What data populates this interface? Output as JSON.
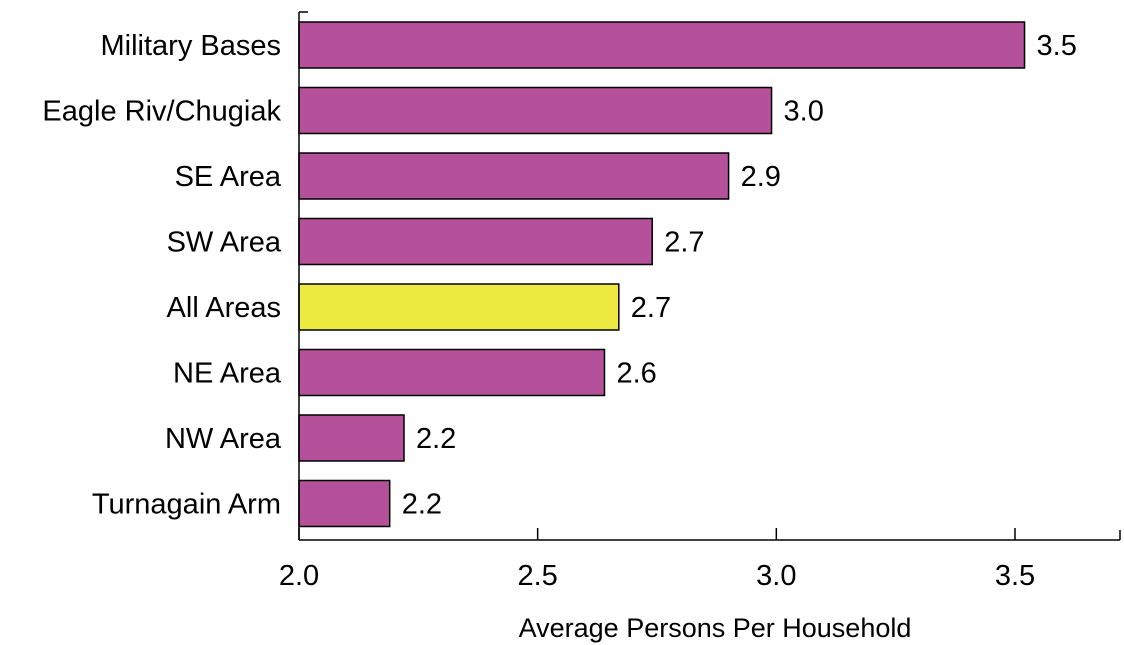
{
  "chart_data": {
    "type": "bar",
    "orientation": "horizontal",
    "categories": [
      "Military Bases",
      "Eagle Riv/Chugiak",
      "SE Area",
      "SW Area",
      "All Areas",
      "NE Area",
      "NW Area",
      "Turnagain Arm"
    ],
    "values": [
      3.52,
      2.99,
      2.9,
      2.74,
      2.67,
      2.64,
      2.22,
      2.19
    ],
    "value_labels": [
      "3.5",
      "3.0",
      "2.9",
      "2.7",
      "2.7",
      "2.6",
      "2.2",
      "2.2"
    ],
    "highlight_category": "All Areas",
    "colors": {
      "default": "#b5519b",
      "highlight": "#ecea40"
    },
    "xlabel": "Average Persons Per Household",
    "ylabel": "",
    "title": "",
    "xlim": [
      2.0,
      3.72
    ],
    "xticks": [
      2.0,
      2.5,
      3.0,
      3.5
    ],
    "xtick_labels": [
      "2.0",
      "2.5",
      "3.0",
      "3.5"
    ],
    "grid": false,
    "legend": "none"
  }
}
